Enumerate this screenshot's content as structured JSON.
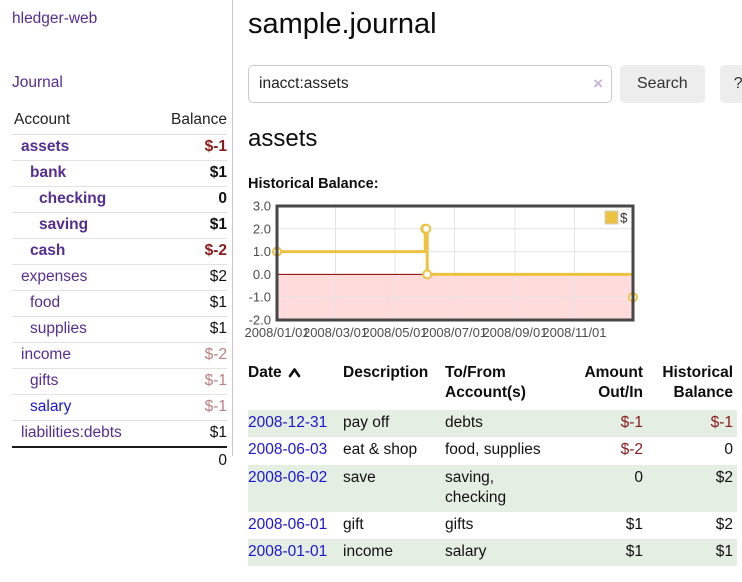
{
  "colors": {
    "link_purple": "#562d91",
    "link_blue": "#1a16d6",
    "negative_strong": "#8b1a1a",
    "negative_soft": "#bc7f7f",
    "row_stripe_green": "#e5eee3",
    "chart_gold": "#edc240",
    "chart_negative_fill": "#ffdbdb",
    "chart_zero_line": "#8b0000"
  },
  "sidebar": {
    "brand": "hledger-web",
    "nav_journal": "Journal",
    "accounts_table": {
      "headers": [
        "Account",
        "Balance"
      ],
      "rows": [
        {
          "name": "assets",
          "indent": 1,
          "bold": true,
          "link_style": "visited",
          "balance": "$-1",
          "balance_style": "negative-strong"
        },
        {
          "name": "bank",
          "indent": 2,
          "bold": true,
          "link_style": "visited",
          "balance": "$1",
          "balance_style": "normal-strong"
        },
        {
          "name": "checking",
          "indent": 3,
          "bold": true,
          "link_style": "visited",
          "balance": "0",
          "balance_style": "normal-strong"
        },
        {
          "name": "saving",
          "indent": 3,
          "bold": true,
          "link_style": "visited",
          "balance": "$1",
          "balance_style": "normal-strong"
        },
        {
          "name": "cash",
          "indent": 2,
          "bold": true,
          "link_style": "visited",
          "balance": "$-2",
          "balance_style": "negative-strong"
        },
        {
          "name": "expenses",
          "indent": 1,
          "bold": false,
          "link_style": "visited",
          "balance": "$2",
          "balance_style": "normal"
        },
        {
          "name": "food",
          "indent": 2,
          "bold": false,
          "link_style": "visited",
          "balance": "$1",
          "balance_style": "normal"
        },
        {
          "name": "supplies",
          "indent": 2,
          "bold": false,
          "link_style": "visited",
          "balance": "$1",
          "balance_style": "normal"
        },
        {
          "name": "income",
          "indent": 1,
          "bold": false,
          "link_style": "visited",
          "balance": "$-2",
          "balance_style": "negative-soft"
        },
        {
          "name": "gifts",
          "indent": 2,
          "bold": false,
          "link_style": "visited",
          "balance": "$-1",
          "balance_style": "negative-soft"
        },
        {
          "name": "salary",
          "indent": 2,
          "bold": false,
          "link_style": "unvisited",
          "balance": "$-1",
          "balance_style": "negative-soft"
        },
        {
          "name": "liabilities:debts",
          "indent": 1,
          "bold": false,
          "link_style": "visited",
          "balance": "$1",
          "balance_style": "normal"
        }
      ],
      "total": "0"
    }
  },
  "main": {
    "title": "sample.journal",
    "search": {
      "value": "inacct:assets",
      "clear_icon": "×",
      "button_label": "Search",
      "help_label": "?"
    },
    "account_heading": "assets",
    "chart_heading": "Historical Balance:",
    "register_table": {
      "headers": [
        "Date",
        "Description",
        "To/From Account(s)",
        "Amount Out/In",
        "Historical Balance"
      ],
      "sort": {
        "column": "Date",
        "direction": "ascending",
        "icon": "chevron-up"
      },
      "rows": [
        {
          "date": "2008-12-31",
          "description": "pay off",
          "accounts": [
            "debts"
          ],
          "amount": "$-1",
          "amount_negative": true,
          "balance": "$-1",
          "balance_negative": true
        },
        {
          "date": "2008-06-03",
          "description": "eat & shop",
          "accounts": [
            "food, supplies"
          ],
          "amount": "$-2",
          "amount_negative": true,
          "balance": "0",
          "balance_negative": false
        },
        {
          "date": "2008-06-02",
          "description": "save",
          "accounts": [
            "saving,",
            "checking"
          ],
          "amount": "0",
          "amount_negative": false,
          "balance": "$2",
          "balance_negative": false
        },
        {
          "date": "2008-06-01",
          "description": "gift",
          "accounts": [
            "gifts"
          ],
          "amount": "$1",
          "amount_negative": false,
          "balance": "$2",
          "balance_negative": false
        },
        {
          "date": "2008-01-01",
          "description": "income",
          "accounts": [
            "salary"
          ],
          "amount": "$1",
          "amount_negative": false,
          "balance": "$1",
          "balance_negative": false
        }
      ]
    }
  },
  "chart_data": {
    "type": "line",
    "subtype": "step",
    "title": "Historical Balance:",
    "series": [
      {
        "name": "$",
        "color": "#edc240",
        "points": [
          [
            "2008-01-01",
            1
          ],
          [
            "2008-06-01",
            2
          ],
          [
            "2008-06-02",
            2
          ],
          [
            "2008-06-03",
            0
          ],
          [
            "2008-12-31",
            -1
          ]
        ]
      }
    ],
    "xlim": [
      "2008-01-01",
      "2008-12-31"
    ],
    "ylim": [
      -2,
      3
    ],
    "y_ticks": [
      3.0,
      2.0,
      1.0,
      0.0,
      -1.0,
      -2.0
    ],
    "x_ticks": [
      "2008/01/01",
      "2008/03/01",
      "2008/05/01",
      "2008/07/01",
      "2008/09/01",
      "2008/11/01"
    ],
    "legend": {
      "label": "$",
      "position": "top-right"
    },
    "grid": true,
    "negative_region_color": "#ffdbdb",
    "zero_line_color": "#8b0000"
  }
}
